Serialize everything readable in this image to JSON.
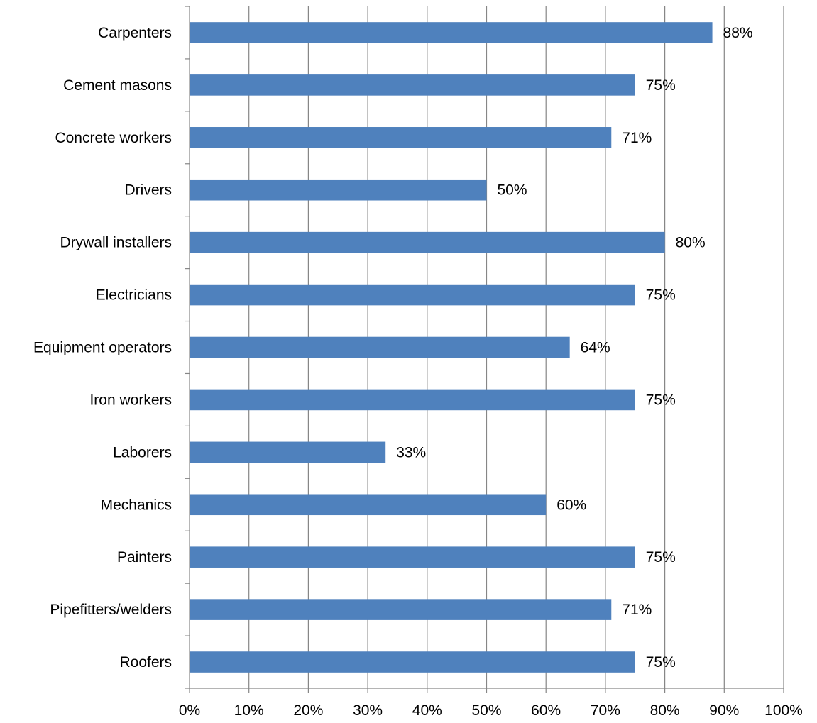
{
  "chart_data": {
    "type": "bar",
    "orientation": "horizontal",
    "categories": [
      "Carpenters",
      "Cement masons",
      "Concrete workers",
      "Drivers",
      "Drywall installers",
      "Electricians",
      "Equipment operators",
      "Iron workers",
      "Laborers",
      "Mechanics",
      "Painters",
      "Pipefitters/welders",
      "Roofers"
    ],
    "values": [
      88,
      75,
      71,
      50,
      80,
      75,
      64,
      75,
      33,
      60,
      75,
      71,
      75
    ],
    "data_labels": [
      "88%",
      "75%",
      "71%",
      "50%",
      "80%",
      "75%",
      "64%",
      "75%",
      "33%",
      "60%",
      "75%",
      "71%",
      "75%"
    ],
    "x_ticks": [
      "0%",
      "10%",
      "20%",
      "30%",
      "40%",
      "50%",
      "60%",
      "70%",
      "80%",
      "90%",
      "100%"
    ],
    "xlim": [
      0,
      100
    ],
    "grid": "vertical",
    "title": "",
    "xlabel": "",
    "ylabel": "",
    "bar_color": "#4F81BD",
    "grid_color": "#868686",
    "axis_color": "#868686"
  }
}
